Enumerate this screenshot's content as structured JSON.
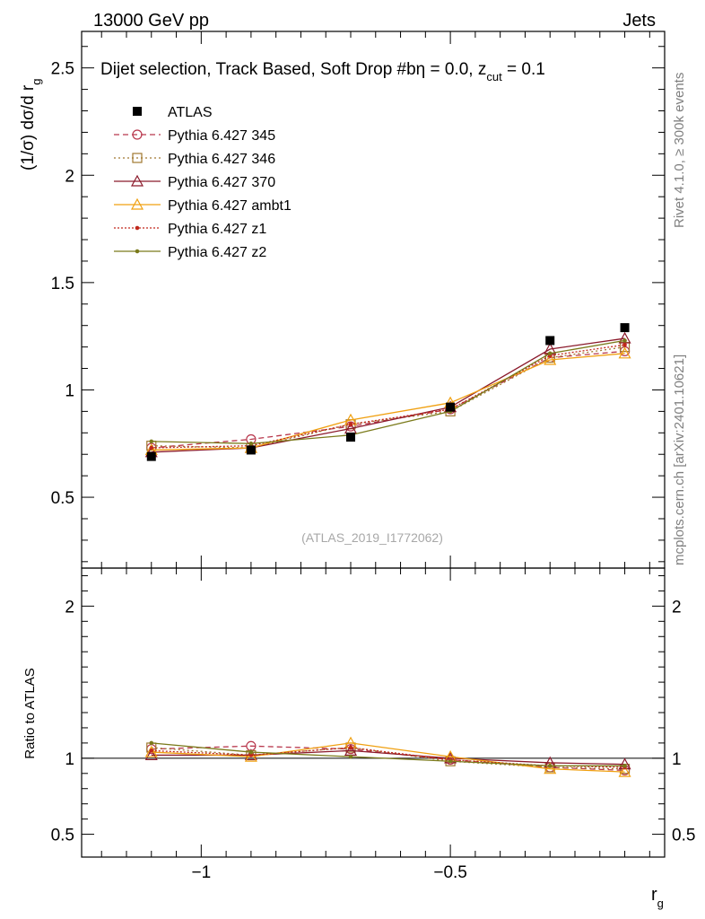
{
  "header": {
    "left": "13000 GeV pp",
    "right": "Jets"
  },
  "side_labels": {
    "rivet": "Rivet 4.1.0, ≥ 300k events",
    "mcplots": "mcplots.cern.ch [arXiv:2401.10621]"
  },
  "chart_data": {
    "type": "line",
    "title": "Dijet selection, Track Based, Soft Drop #b",
    "title_suffix": "η = 0.0, z",
    "title_sub": "cut",
    "title_end": " = 0.1",
    "watermark": "(ATLAS_2019_I1772062)",
    "ylabel_main": "(1/σ) dσ/d r",
    "ylabel_main_sub": "g",
    "ylabel_ratio": "Ratio to ATLAS",
    "xlabel": "r",
    "xlabel_sub": "g",
    "xlim": [
      -1.24,
      -0.07
    ],
    "ylim_main": [
      0.17,
      2.67
    ],
    "ylim_ratio": [
      0.35,
      2.25
    ],
    "x_ticks": [
      {
        "value": -1.0,
        "label": "−1"
      },
      {
        "value": -0.5,
        "label": "−0.5"
      }
    ],
    "y_ticks_main": [
      {
        "value": 0.5,
        "label": "0.5"
      },
      {
        "value": 1.0,
        "label": "1"
      },
      {
        "value": 1.5,
        "label": "1.5"
      },
      {
        "value": 2.0,
        "label": "2"
      },
      {
        "value": 2.5,
        "label": "2.5"
      }
    ],
    "y_ticks_ratio": [
      {
        "value": 0.5,
        "label": "0.5"
      },
      {
        "value": 1.0,
        "label": "1"
      },
      {
        "value": 2.0,
        "label": "2"
      }
    ],
    "x": [
      -1.1,
      -0.9,
      -0.7,
      -0.5,
      -0.3,
      -0.15
    ],
    "data": {
      "name": "ATLAS",
      "values": [
        0.69,
        0.72,
        0.78,
        0.92,
        1.23,
        1.29
      ],
      "errors": [
        0.01,
        0.01,
        0.01,
        0.01,
        0.01,
        0.01
      ]
    },
    "series": [
      {
        "name": "Pythia 6.427 345",
        "color": "#b8374c",
        "dash": "6,4",
        "marker": "circle",
        "fill": false,
        "values": [
          0.73,
          0.77,
          0.83,
          0.91,
          1.15,
          1.18
        ],
        "ratio": [
          1.06,
          1.08,
          1.06,
          0.99,
          0.94,
          0.92
        ]
      },
      {
        "name": "Pythia 6.427 346",
        "color": "#a07830",
        "dash": "2,3",
        "marker": "square",
        "fill": false,
        "values": [
          0.74,
          0.73,
          0.84,
          0.9,
          1.15,
          1.2
        ],
        "ratio": [
          1.07,
          1.02,
          1.07,
          0.98,
          0.94,
          0.93
        ]
      },
      {
        "name": "Pythia 6.427 370",
        "color": "#8b1a2b",
        "dash": "",
        "marker": "triangle",
        "fill": false,
        "values": [
          0.71,
          0.73,
          0.82,
          0.92,
          1.19,
          1.24
        ],
        "ratio": [
          1.02,
          1.02,
          1.05,
          1.0,
          0.97,
          0.96
        ]
      },
      {
        "name": "Pythia 6.427 ambt1",
        "color": "#f0a010",
        "dash": "",
        "marker": "triangle",
        "fill": false,
        "values": [
          0.72,
          0.73,
          0.86,
          0.94,
          1.14,
          1.17
        ],
        "ratio": [
          1.04,
          1.01,
          1.1,
          1.01,
          0.93,
          0.91
        ]
      },
      {
        "name": "Pythia 6.427 z1",
        "color": "#c0281c",
        "dash": "2,2",
        "marker": "dot",
        "fill": true,
        "values": [
          0.73,
          0.74,
          0.84,
          0.91,
          1.16,
          1.21
        ],
        "ratio": [
          1.05,
          1.02,
          1.07,
          0.99,
          0.95,
          0.94
        ]
      },
      {
        "name": "Pythia 6.427 z2",
        "color": "#7a7a1a",
        "dash": "",
        "marker": "dot",
        "fill": true,
        "values": [
          0.76,
          0.75,
          0.79,
          0.9,
          1.17,
          1.23
        ],
        "ratio": [
          1.1,
          1.04,
          1.01,
          0.98,
          0.95,
          0.95
        ]
      }
    ]
  }
}
